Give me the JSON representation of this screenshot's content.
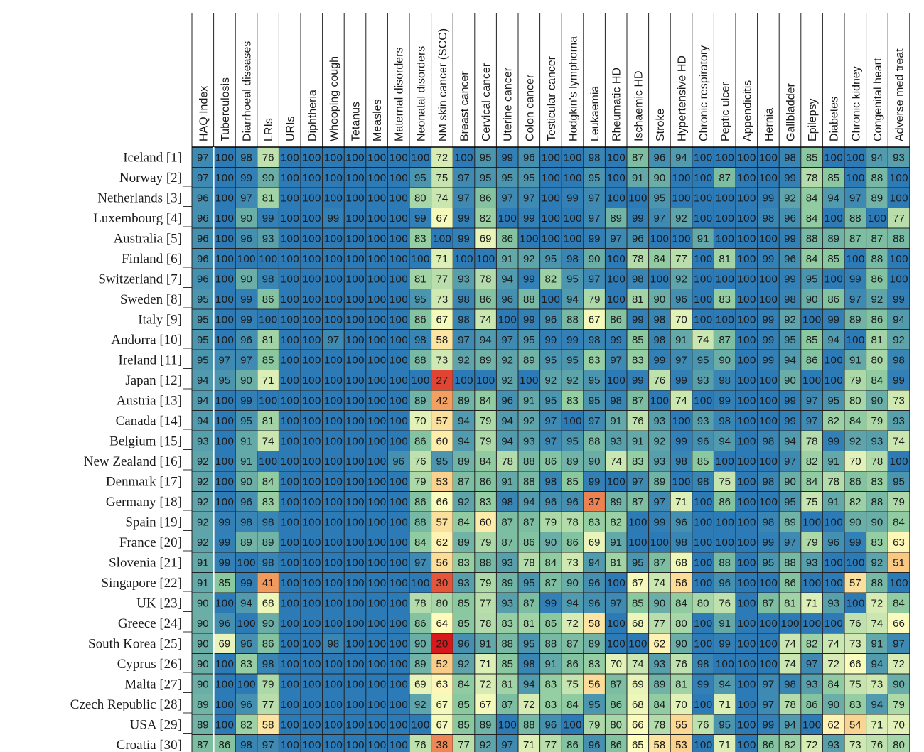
{
  "chart_data": {
    "type": "heatmap",
    "columns": [
      "HAQ Index",
      "Tuberculosis",
      "Diarrhoeal diseases",
      "LRIs",
      "URIs",
      "Diphtheria",
      "Whooping cough",
      "Tetanus",
      "Measles",
      "Maternal disorders",
      "Neonatal disorders",
      "NM skin cancer (SCC)",
      "Breast cancer",
      "Cervical cancer",
      "Uterine cancer",
      "Colon cancer",
      "Testicular cancer",
      "Hodgkin's lymphoma",
      "Leukaemia",
      "Rheumatic HD",
      "Ischaemic HD",
      "Stroke",
      "Hypertensive HD",
      "Chronic respiratory",
      "Peptic ulcer",
      "Appendicitis",
      "Hernia",
      "Gallbladder",
      "Epilepsy",
      "Diabetes",
      "Chronic kidney",
      "Congenital heart",
      "Adverse med treat"
    ],
    "rows": [
      "Iceland [1]",
      "Norway [2]",
      "Netherlands [3]",
      "Luxembourg [4]",
      "Australia [5]",
      "Finland [6]",
      "Switzerland [7]",
      "Sweden [8]",
      "Italy [9]",
      "Andorra [10]",
      "Ireland [11]",
      "Japan [12]",
      "Austria [13]",
      "Canada [14]",
      "Belgium [15]",
      "New Zealand [16]",
      "Denmark [17]",
      "Germany [18]",
      "Spain [19]",
      "France [20]",
      "Slovenia [21]",
      "Singapore [22]",
      "UK [23]",
      "Greece [24]",
      "South Korea [25]",
      "Cyprus [26]",
      "Malta [27]",
      "Czech Republic [28]",
      "USA [29]",
      "Croatia [30]"
    ],
    "values": [
      [
        97,
        100,
        98,
        76,
        100,
        100,
        100,
        100,
        100,
        100,
        100,
        72,
        100,
        95,
        99,
        96,
        100,
        100,
        98,
        100,
        87,
        96,
        94,
        100,
        100,
        100,
        100,
        98,
        85,
        100,
        100,
        94,
        93
      ],
      [
        97,
        100,
        99,
        90,
        100,
        100,
        100,
        100,
        100,
        100,
        95,
        75,
        97,
        95,
        95,
        95,
        100,
        100,
        95,
        100,
        91,
        90,
        100,
        100,
        87,
        100,
        100,
        99,
        78,
        85,
        100,
        88,
        100
      ],
      [
        96,
        100,
        97,
        81,
        100,
        100,
        100,
        100,
        100,
        100,
        80,
        74,
        97,
        86,
        97,
        97,
        100,
        99,
        97,
        100,
        100,
        95,
        100,
        100,
        100,
        100,
        99,
        92,
        84,
        94,
        97,
        89,
        100
      ],
      [
        96,
        100,
        90,
        99,
        100,
        100,
        99,
        100,
        100,
        100,
        99,
        67,
        99,
        82,
        100,
        99,
        100,
        100,
        97,
        89,
        99,
        97,
        92,
        100,
        100,
        100,
        98,
        96,
        84,
        100,
        88,
        100,
        77
      ],
      [
        96,
        100,
        96,
        93,
        100,
        100,
        100,
        100,
        100,
        100,
        83,
        100,
        99,
        69,
        86,
        100,
        100,
        100,
        99,
        97,
        96,
        100,
        100,
        91,
        100,
        100,
        100,
        99,
        88,
        89,
        87,
        87,
        88
      ],
      [
        96,
        100,
        100,
        100,
        100,
        100,
        100,
        100,
        100,
        100,
        100,
        71,
        100,
        100,
        91,
        92,
        95,
        98,
        90,
        100,
        78,
        84,
        77,
        100,
        81,
        100,
        99,
        96,
        84,
        85,
        100,
        88,
        100
      ],
      [
        96,
        100,
        90,
        98,
        100,
        100,
        100,
        100,
        100,
        100,
        81,
        77,
        93,
        78,
        94,
        99,
        82,
        95,
        97,
        100,
        98,
        100,
        92,
        100,
        100,
        100,
        100,
        99,
        95,
        100,
        99,
        86,
        100
      ],
      [
        95,
        100,
        99,
        86,
        100,
        100,
        100,
        100,
        100,
        100,
        95,
        73,
        98,
        86,
        96,
        88,
        100,
        94,
        79,
        100,
        81,
        90,
        96,
        100,
        83,
        100,
        100,
        98,
        90,
        86,
        97,
        92,
        99
      ],
      [
        95,
        100,
        99,
        100,
        100,
        100,
        100,
        100,
        100,
        100,
        86,
        67,
        98,
        74,
        100,
        99,
        96,
        88,
        67,
        86,
        99,
        98,
        70,
        100,
        100,
        100,
        99,
        92,
        100,
        99,
        89,
        86,
        94
      ],
      [
        95,
        100,
        96,
        81,
        100,
        100,
        97,
        100,
        100,
        100,
        98,
        58,
        97,
        94,
        97,
        95,
        99,
        99,
        98,
        99,
        85,
        98,
        91,
        74,
        87,
        100,
        99,
        95,
        85,
        94,
        100,
        81,
        92
      ],
      [
        95,
        97,
        97,
        85,
        100,
        100,
        100,
        100,
        100,
        100,
        88,
        73,
        92,
        89,
        92,
        89,
        95,
        95,
        83,
        97,
        83,
        99,
        97,
        95,
        90,
        100,
        99,
        94,
        86,
        100,
        91,
        80,
        98
      ],
      [
        94,
        95,
        90,
        71,
        100,
        100,
        100,
        100,
        100,
        100,
        100,
        27,
        100,
        100,
        92,
        100,
        92,
        92,
        95,
        100,
        99,
        76,
        99,
        93,
        98,
        100,
        100,
        90,
        100,
        100,
        79,
        84,
        99
      ],
      [
        94,
        100,
        99,
        100,
        100,
        100,
        100,
        100,
        100,
        100,
        89,
        42,
        89,
        84,
        96,
        91,
        95,
        83,
        95,
        98,
        87,
        100,
        74,
        100,
        99,
        100,
        100,
        99,
        97,
        95,
        80,
        90,
        73
      ],
      [
        94,
        100,
        95,
        81,
        100,
        100,
        100,
        100,
        100,
        100,
        70,
        57,
        94,
        79,
        94,
        92,
        97,
        100,
        97,
        91,
        76,
        93,
        100,
        93,
        98,
        100,
        100,
        99,
        97,
        82,
        84,
        79,
        93
      ],
      [
        93,
        100,
        91,
        74,
        100,
        100,
        100,
        100,
        100,
        100,
        86,
        60,
        94,
        79,
        94,
        93,
        97,
        95,
        88,
        93,
        91,
        92,
        99,
        96,
        94,
        100,
        98,
        94,
        78,
        99,
        92,
        93,
        74
      ],
      [
        92,
        100,
        91,
        100,
        100,
        100,
        100,
        100,
        100,
        96,
        76,
        95,
        89,
        84,
        78,
        88,
        86,
        89,
        90,
        74,
        83,
        93,
        98,
        85,
        100,
        100,
        100,
        97,
        82,
        91,
        70,
        78,
        100
      ],
      [
        92,
        100,
        90,
        84,
        100,
        100,
        100,
        100,
        100,
        100,
        79,
        53,
        87,
        86,
        91,
        88,
        98,
        85,
        99,
        100,
        97,
        89,
        100,
        98,
        75,
        100,
        98,
        90,
        84,
        78,
        86,
        83,
        95
      ],
      [
        92,
        100,
        96,
        83,
        100,
        100,
        100,
        100,
        100,
        100,
        86,
        66,
        92,
        83,
        98,
        94,
        96,
        96,
        37,
        89,
        87,
        97,
        71,
        100,
        86,
        100,
        100,
        95,
        75,
        91,
        82,
        88,
        79
      ],
      [
        92,
        99,
        98,
        98,
        100,
        100,
        100,
        100,
        100,
        100,
        88,
        57,
        84,
        60,
        87,
        87,
        79,
        78,
        83,
        82,
        100,
        99,
        96,
        100,
        100,
        100,
        98,
        89,
        100,
        100,
        90,
        90,
        84
      ],
      [
        92,
        99,
        89,
        89,
        100,
        100,
        100,
        100,
        100,
        100,
        84,
        62,
        89,
        79,
        87,
        86,
        90,
        86,
        69,
        91,
        100,
        100,
        98,
        100,
        100,
        100,
        99,
        97,
        79,
        96,
        99,
        83,
        63
      ],
      [
        91,
        99,
        100,
        98,
        100,
        100,
        100,
        100,
        100,
        100,
        97,
        56,
        83,
        88,
        93,
        78,
        84,
        73,
        94,
        81,
        95,
        87,
        68,
        100,
        88,
        100,
        95,
        88,
        93,
        100,
        100,
        92,
        51
      ],
      [
        91,
        85,
        99,
        41,
        100,
        100,
        100,
        100,
        100,
        100,
        100,
        30,
        93,
        79,
        89,
        95,
        87,
        90,
        96,
        100,
        67,
        74,
        56,
        100,
        96,
        100,
        100,
        86,
        100,
        100,
        57,
        88,
        100
      ],
      [
        90,
        100,
        94,
        68,
        100,
        100,
        100,
        100,
        100,
        100,
        78,
        80,
        85,
        77,
        93,
        87,
        99,
        94,
        96,
        97,
        85,
        90,
        84,
        80,
        76,
        100,
        87,
        81,
        71,
        93,
        100,
        72,
        84
      ],
      [
        90,
        96,
        100,
        90,
        100,
        100,
        100,
        100,
        100,
        100,
        86,
        64,
        85,
        78,
        83,
        81,
        85,
        72,
        58,
        100,
        68,
        77,
        80,
        100,
        91,
        100,
        100,
        100,
        100,
        100,
        76,
        74,
        66
      ],
      [
        90,
        69,
        96,
        86,
        100,
        100,
        98,
        100,
        100,
        100,
        90,
        20,
        96,
        91,
        88,
        95,
        88,
        87,
        89,
        100,
        100,
        62,
        90,
        100,
        99,
        100,
        100,
        74,
        82,
        74,
        73,
        91,
        97
      ],
      [
        90,
        100,
        83,
        98,
        100,
        100,
        100,
        100,
        100,
        100,
        89,
        52,
        92,
        71,
        85,
        98,
        91,
        86,
        83,
        70,
        74,
        93,
        76,
        98,
        100,
        100,
        100,
        74,
        97,
        72,
        66,
        94,
        72
      ],
      [
        90,
        100,
        100,
        79,
        100,
        100,
        100,
        100,
        100,
        100,
        69,
        63,
        84,
        72,
        81,
        94,
        83,
        75,
        56,
        87,
        69,
        89,
        81,
        99,
        94,
        100,
        97,
        98,
        93,
        84,
        75,
        73,
        90
      ],
      [
        89,
        100,
        96,
        77,
        100,
        100,
        100,
        100,
        100,
        100,
        92,
        67,
        85,
        67,
        87,
        72,
        83,
        84,
        95,
        86,
        68,
        84,
        70,
        100,
        71,
        100,
        97,
        78,
        86,
        90,
        83,
        94,
        79
      ],
      [
        89,
        100,
        82,
        58,
        100,
        100,
        100,
        100,
        100,
        100,
        100,
        67,
        85,
        89,
        100,
        88,
        96,
        100,
        79,
        80,
        66,
        78,
        55,
        76,
        95,
        100,
        99,
        94,
        100,
        62,
        54,
        71,
        70
      ],
      [
        87,
        86,
        98,
        97,
        100,
        100,
        100,
        100,
        100,
        100,
        76,
        38,
        77,
        92,
        97,
        71,
        77,
        86,
        96,
        86,
        65,
        58,
        53,
        100,
        71,
        100,
        86,
        82,
        72,
        93,
        73,
        76,
        80
      ]
    ],
    "color_scale": {
      "low": "#d7191c",
      "mid_low": "#f6b26b",
      "mid": "#ffffbf",
      "mid_high": "#8ac8a0",
      "high": "#2c7bb6"
    },
    "legend": "none"
  }
}
